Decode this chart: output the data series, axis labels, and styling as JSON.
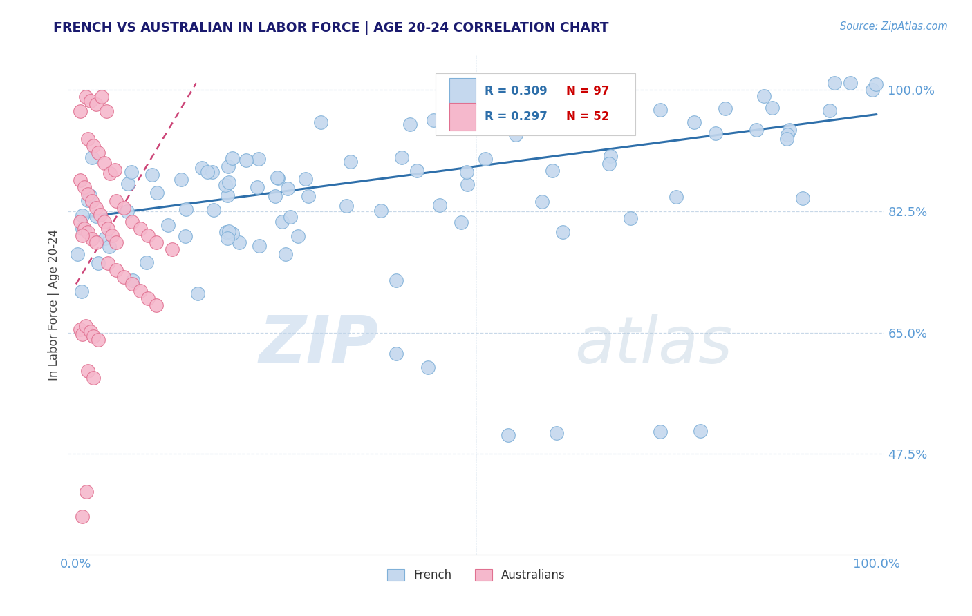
{
  "title": "FRENCH VS AUSTRALIAN IN LABOR FORCE | AGE 20-24 CORRELATION CHART",
  "source_text": "Source: ZipAtlas.com",
  "ylabel": "In Labor Force | Age 20-24",
  "title_color": "#1a1a6e",
  "axis_color": "#aaaaaa",
  "tick_color": "#5b9bd5",
  "grid_color": "#c8d8e8",
  "french_color": "#c5d8ee",
  "french_edge_color": "#7fb0d8",
  "australian_color": "#f5b8cc",
  "australian_edge_color": "#e07090",
  "trend_french_color": "#2e6faa",
  "trend_australian_color": "#cc4477",
  "trend_australian_dashed": true,
  "legend_text_color": "#2e6faa",
  "legend_N_color": "#cc0000",
  "watermark_color": "#ddeeff",
  "ytick_vals": [
    0.475,
    0.65,
    0.825,
    1.0
  ],
  "ytick_labels": [
    "47.5%",
    "65.0%",
    "82.5%",
    "100.0%"
  ],
  "ylim_low": 0.33,
  "ylim_high": 1.05,
  "xlim_low": -0.01,
  "xlim_high": 1.01,
  "trend_blue_x0": 0.0,
  "trend_blue_y0": 0.815,
  "trend_blue_x1": 1.0,
  "trend_blue_y1": 0.965,
  "trend_pink_x0": 0.0,
  "trend_pink_y0": 0.72,
  "trend_pink_x1": 0.15,
  "trend_pink_y1": 1.01
}
